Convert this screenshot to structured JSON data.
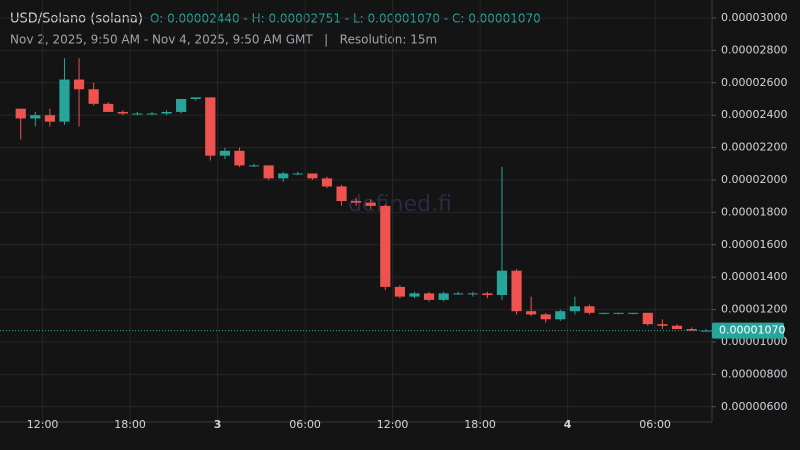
{
  "chart_data": {
    "type": "candlestick",
    "title": "USD/Solano (solana)",
    "ohlc_summary": "O: 0.00002440 - H: 0.00002751 - L: 0.00001070 - C: 0.00001070",
    "subtitle": "Nov 2, 2025, 9:50 AM - Nov 4, 2025, 9:50 AM GMT   |   Resolution: 15m",
    "watermark": "defined.fi",
    "up_color": "#26a69a",
    "down_color": "#ef5350",
    "x": [
      "2025-11-02T10:00",
      "2025-11-02T11:00",
      "2025-11-02T12:00",
      "2025-11-02T13:00",
      "2025-11-02T14:00",
      "2025-11-02T15:00",
      "2025-11-02T16:00",
      "2025-11-02T17:00",
      "2025-11-02T18:00",
      "2025-11-02T19:00",
      "2025-11-02T20:00",
      "2025-11-02T21:00",
      "2025-11-02T22:00",
      "2025-11-02T23:00",
      "2025-11-03T00:00",
      "2025-11-03T01:00",
      "2025-11-03T02:00",
      "2025-11-03T03:00",
      "2025-11-03T04:00",
      "2025-11-03T05:00",
      "2025-11-03T06:00",
      "2025-11-03T07:00",
      "2025-11-03T08:00",
      "2025-11-03T09:00",
      "2025-11-03T10:00",
      "2025-11-03T11:00",
      "2025-11-03T12:00",
      "2025-11-03T13:00",
      "2025-11-03T14:00",
      "2025-11-03T15:00",
      "2025-11-03T16:00",
      "2025-11-03T17:00",
      "2025-11-03T18:00",
      "2025-11-03T19:00",
      "2025-11-03T20:00",
      "2025-11-03T21:00",
      "2025-11-03T22:00",
      "2025-11-03T23:00",
      "2025-11-04T00:00",
      "2025-11-04T01:00",
      "2025-11-04T02:00",
      "2025-11-04T03:00",
      "2025-11-04T04:00",
      "2025-11-04T05:00",
      "2025-11-04T06:00",
      "2025-11-04T07:00",
      "2025-11-04T08:00",
      "2025-11-04T09:00"
    ],
    "open": [
      2.44e-05,
      2.38e-05,
      2.4e-05,
      2.36e-05,
      2.62e-05,
      2.56e-05,
      2.47e-05,
      2.42e-05,
      2.41e-05,
      2.41e-05,
      2.41e-05,
      2.42e-05,
      2.5e-05,
      2.51e-05,
      2.15e-05,
      2.18e-05,
      2.09e-05,
      2.09e-05,
      2.01e-05,
      2.04e-05,
      2.04e-05,
      2.01e-05,
      1.96e-05,
      1.87e-05,
      1.86e-05,
      1.84e-05,
      1.34e-05,
      1.28e-05,
      1.3e-05,
      1.26e-05,
      1.3e-05,
      1.3e-05,
      1.3e-05,
      1.29e-05,
      1.44e-05,
      1.19e-05,
      1.17e-05,
      1.14e-05,
      1.19e-05,
      1.22e-05,
      1.18e-05,
      1.18e-05,
      1.18e-05,
      1.18e-05,
      1.11e-05,
      1.1e-05,
      1.08e-05,
      1.07e-05
    ],
    "high": [
      2.44e-05,
      2.42e-05,
      2.44e-05,
      2.751e-05,
      2.751e-05,
      2.6e-05,
      2.48e-05,
      2.43e-05,
      2.42e-05,
      2.42e-05,
      2.43e-05,
      2.5e-05,
      2.51e-05,
      2.51e-05,
      2.2e-05,
      2.2e-05,
      2.1e-05,
      2.09e-05,
      2.05e-05,
      2.05e-05,
      2.04e-05,
      2.02e-05,
      1.97e-05,
      1.89e-05,
      1.88e-05,
      1.85e-05,
      1.35e-05,
      1.31e-05,
      1.31e-05,
      1.31e-05,
      1.31e-05,
      1.31e-05,
      1.31e-05,
      2.08e-05,
      1.45e-05,
      1.28e-05,
      1.18e-05,
      1.2e-05,
      1.28e-05,
      1.23e-05,
      1.18e-05,
      1.18e-05,
      1.18e-05,
      1.18e-05,
      1.14e-05,
      1.11e-05,
      1.09e-05,
      1.08e-05
    ],
    "low": [
      2.25e-05,
      2.33e-05,
      2.33e-05,
      2.34e-05,
      2.33e-05,
      2.46e-05,
      2.42e-05,
      2.4e-05,
      2.4e-05,
      2.4e-05,
      2.4e-05,
      2.41e-05,
      2.49e-05,
      2.12e-05,
      2.13e-05,
      2.08e-05,
      2.08e-05,
      2e-05,
      1.99e-05,
      2.03e-05,
      2e-05,
      1.95e-05,
      1.84e-05,
      1.84e-05,
      1.82e-05,
      1.32e-05,
      1.27e-05,
      1.27e-05,
      1.25e-05,
      1.25e-05,
      1.29e-05,
      1.28e-05,
      1.27e-05,
      1.26e-05,
      1.17e-05,
      1.16e-05,
      1.12e-05,
      1.13e-05,
      1.17e-05,
      1.17e-05,
      1.17e-05,
      1.17e-05,
      1.17e-05,
      1.1e-05,
      1.08e-05,
      1.08e-05,
      1.07e-05,
      1.07e-05
    ],
    "close": [
      2.38e-05,
      2.4e-05,
      2.36e-05,
      2.62e-05,
      2.56e-05,
      2.47e-05,
      2.42e-05,
      2.41e-05,
      2.41e-05,
      2.41e-05,
      2.42e-05,
      2.5e-05,
      2.51e-05,
      2.15e-05,
      2.18e-05,
      2.09e-05,
      2.09e-05,
      2.01e-05,
      2.04e-05,
      2.04e-05,
      2.01e-05,
      1.96e-05,
      1.87e-05,
      1.86e-05,
      1.84e-05,
      1.34e-05,
      1.28e-05,
      1.3e-05,
      1.26e-05,
      1.3e-05,
      1.3e-05,
      1.3e-05,
      1.29e-05,
      1.44e-05,
      1.19e-05,
      1.17e-05,
      1.14e-05,
      1.19e-05,
      1.22e-05,
      1.18e-05,
      1.18e-05,
      1.18e-05,
      1.18e-05,
      1.11e-05,
      1.1e-05,
      1.08e-05,
      1.07e-05,
      1.07e-05
    ],
    "last_price": {
      "value": 1.07e-05,
      "label": "0.00001070"
    },
    "xlim": [
      "2025-11-02T09:50",
      "2025-11-04T09:50"
    ],
    "xticks": [
      {
        "value": "2025-11-02T12:00",
        "label": "12:00"
      },
      {
        "value": "2025-11-02T18:00",
        "label": "18:00"
      },
      {
        "value": "2025-11-03T00:00",
        "label": "3"
      },
      {
        "value": "2025-11-03T06:00",
        "label": "06:00"
      },
      {
        "value": "2025-11-03T12:00",
        "label": "12:00"
      },
      {
        "value": "2025-11-03T18:00",
        "label": "18:00"
      },
      {
        "value": "2025-11-04T00:00",
        "label": "4"
      },
      {
        "value": "2025-11-04T06:00",
        "label": "06:00"
      }
    ],
    "ylim": [
      5.06e-06,
      3.111e-05
    ],
    "yticks": [
      {
        "value": 6e-06,
        "label": "0.00000600"
      },
      {
        "value": 8e-06,
        "label": "0.00000800"
      },
      {
        "value": 1e-05,
        "label": "0.00001000"
      },
      {
        "value": 1.2e-05,
        "label": "0.00001200"
      },
      {
        "value": 1.4e-05,
        "label": "0.00001400"
      },
      {
        "value": 1.6e-05,
        "label": "0.00001600"
      },
      {
        "value": 1.8e-05,
        "label": "0.00001800"
      },
      {
        "value": 2e-05,
        "label": "0.00002000"
      },
      {
        "value": 2.2e-05,
        "label": "0.00002200"
      },
      {
        "value": 2.4e-05,
        "label": "0.00002400"
      },
      {
        "value": 2.6e-05,
        "label": "0.00002600"
      },
      {
        "value": 2.8e-05,
        "label": "0.00002800"
      },
      {
        "value": 3e-05,
        "label": "0.00003000"
      }
    ],
    "grid": true
  }
}
